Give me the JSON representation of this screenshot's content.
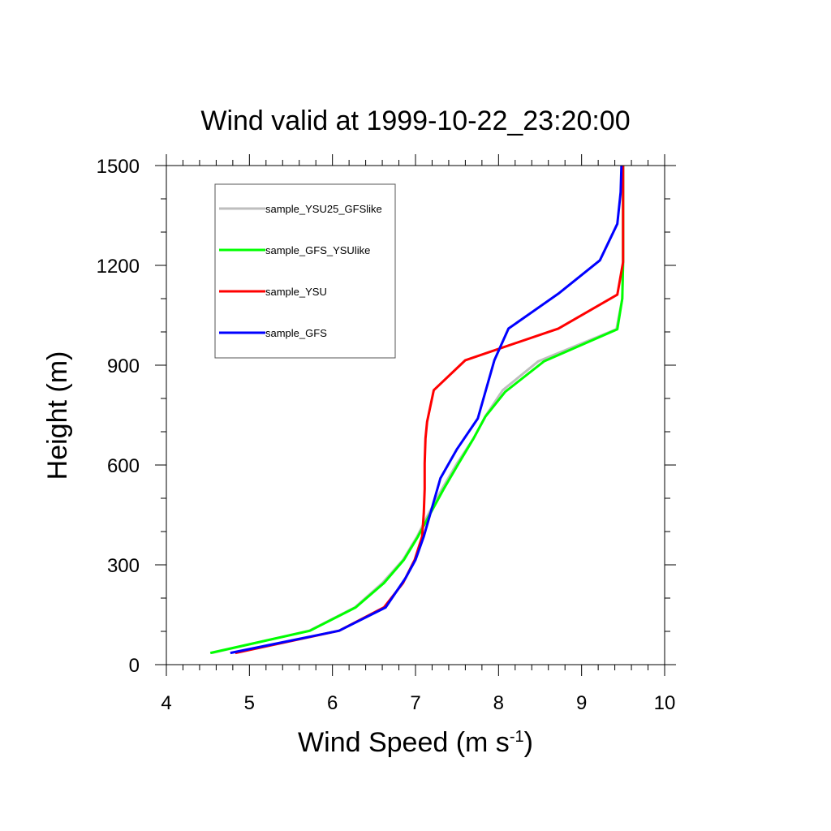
{
  "chart_data": {
    "type": "line",
    "title": "Wind valid at 1999-10-22_23:20:00",
    "xlabel": "Wind Speed (m s",
    "xlabel_sup": "-1",
    "xlabel_suffix": ")",
    "ylabel": "Height (m)",
    "xlim": [
      4,
      10
    ],
    "ylim": [
      0,
      1500
    ],
    "x_ticks": [
      "4",
      "5",
      "6",
      "7",
      "8",
      "9",
      "10"
    ],
    "y_ticks": [
      "0",
      "300",
      "600",
      "900",
      "1200",
      "1500"
    ],
    "legend_position": "top-left",
    "series": [
      {
        "name": "sample_YSU25_GFSlike",
        "color": "#bebebe",
        "points": [
          [
            4.55,
            35
          ],
          [
            5.72,
            102
          ],
          [
            6.27,
            172
          ],
          [
            6.6,
            245
          ],
          [
            6.85,
            315
          ],
          [
            7.02,
            385
          ],
          [
            7.16,
            455
          ],
          [
            7.32,
            528
          ],
          [
            7.5,
            605
          ],
          [
            7.7,
            680
          ],
          [
            7.85,
            750
          ],
          [
            8.05,
            825
          ],
          [
            8.48,
            912
          ],
          [
            9.42,
            1008
          ],
          [
            9.49,
            1100
          ],
          [
            9.5,
            1210
          ],
          [
            9.5,
            1500
          ]
        ]
      },
      {
        "name": "sample_GFS_YSUlike",
        "color": "#00ff00",
        "points": [
          [
            4.53,
            35
          ],
          [
            5.73,
            102
          ],
          [
            6.28,
            172
          ],
          [
            6.62,
            245
          ],
          [
            6.86,
            315
          ],
          [
            7.03,
            385
          ],
          [
            7.18,
            455
          ],
          [
            7.34,
            528
          ],
          [
            7.52,
            605
          ],
          [
            7.7,
            680
          ],
          [
            7.84,
            745
          ],
          [
            8.08,
            820
          ],
          [
            8.55,
            912
          ],
          [
            9.43,
            1008
          ],
          [
            9.49,
            1100
          ],
          [
            9.5,
            1210
          ],
          [
            9.5,
            1500
          ]
        ]
      },
      {
        "name": "sample_YSU",
        "color": "#ff0000",
        "points": [
          [
            4.83,
            35
          ],
          [
            6.08,
            102
          ],
          [
            6.62,
            172
          ],
          [
            6.85,
            245
          ],
          [
            6.99,
            315
          ],
          [
            7.08,
            385
          ],
          [
            7.1,
            455
          ],
          [
            7.11,
            528
          ],
          [
            7.11,
            605
          ],
          [
            7.12,
            680
          ],
          [
            7.14,
            730
          ],
          [
            7.22,
            825
          ],
          [
            7.6,
            915
          ],
          [
            8.72,
            1010
          ],
          [
            9.43,
            1112
          ],
          [
            9.5,
            1210
          ],
          [
            9.5,
            1500
          ]
        ]
      },
      {
        "name": "sample_GFS",
        "color": "#0000ff",
        "points": [
          [
            4.77,
            35
          ],
          [
            6.08,
            102
          ],
          [
            6.64,
            172
          ],
          [
            6.88,
            260
          ],
          [
            7.0,
            315
          ],
          [
            7.1,
            385
          ],
          [
            7.18,
            455
          ],
          [
            7.3,
            560
          ],
          [
            7.5,
            648
          ],
          [
            7.75,
            740
          ],
          [
            7.95,
            915
          ],
          [
            8.12,
            1010
          ],
          [
            8.72,
            1115
          ],
          [
            9.22,
            1215
          ],
          [
            9.43,
            1325
          ],
          [
            9.47,
            1420
          ],
          [
            9.48,
            1500
          ]
        ]
      }
    ]
  }
}
